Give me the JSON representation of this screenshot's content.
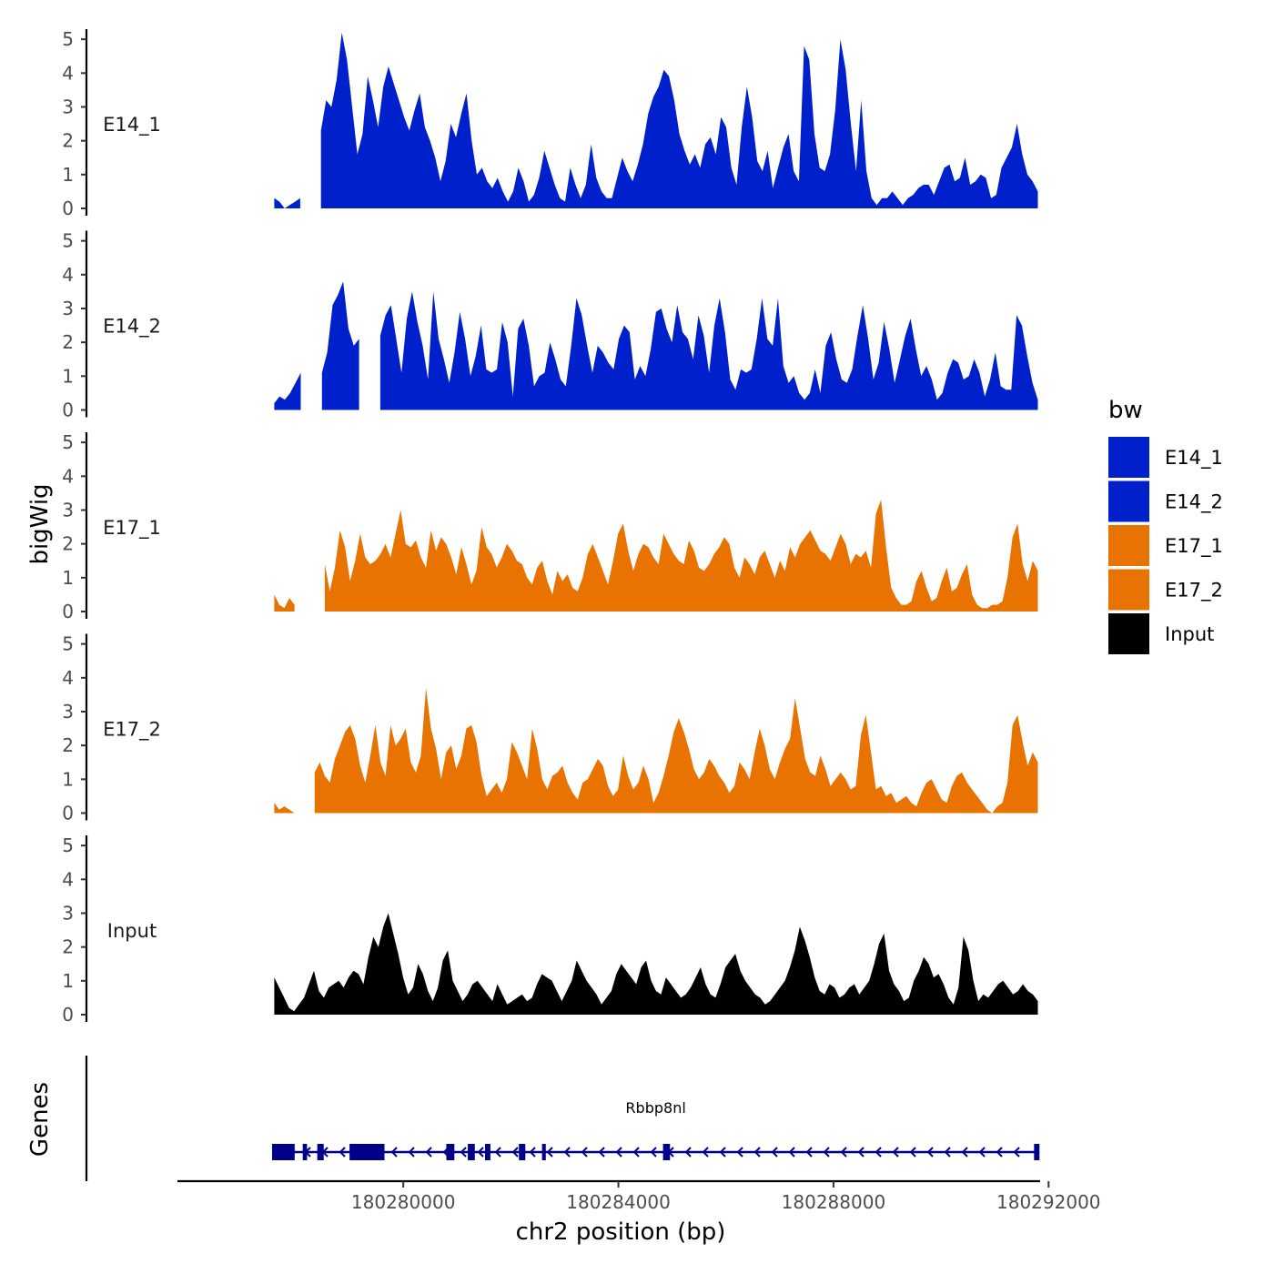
{
  "chart_data": {
    "type": "area",
    "x_title": "chr2 position (bp)",
    "y_title": "bigWig",
    "genes_title": "Genes",
    "legend_title": "bw",
    "xlim": [
      180275800,
      180292300
    ],
    "region": [
      180277600,
      180291800
    ],
    "x_ticks": [
      {
        "value": 180280000,
        "label": "180280000"
      },
      {
        "value": 180284000,
        "label": "180284000"
      },
      {
        "value": 180288000,
        "label": "180288000"
      },
      {
        "value": 180292000,
        "label": "180292000"
      }
    ],
    "ylim": [
      0,
      5.3
    ],
    "y_ticks": [
      {
        "value": 0,
        "label": "0"
      },
      {
        "value": 1,
        "label": "1"
      },
      {
        "value": 2,
        "label": "2"
      },
      {
        "value": 3,
        "label": "3"
      },
      {
        "value": 4,
        "label": "4"
      },
      {
        "value": 5,
        "label": "5"
      }
    ],
    "series": [
      {
        "name": "E14_1",
        "color": "#0020CC",
        "gaps": [
          [
            6,
            8
          ],
          [
            160,
            162
          ],
          [
            262,
            264
          ]
        ],
        "values": [
          0.3,
          0.2,
          0.0,
          0.1,
          0.2,
          0.3,
          0.7,
          1.2,
          1.6,
          2.3,
          3.2,
          3.0,
          3.8,
          5.2,
          4.4,
          3.0,
          1.6,
          2.2,
          3.9,
          3.2,
          2.4,
          3.6,
          4.2,
          3.7,
          3.2,
          2.7,
          2.3,
          2.9,
          3.4,
          2.4,
          2.0,
          1.5,
          0.8,
          1.4,
          2.5,
          2.1,
          2.8,
          3.4,
          2.0,
          1.0,
          1.2,
          0.8,
          0.6,
          0.9,
          0.5,
          0.2,
          0.5,
          1.2,
          0.8,
          0.2,
          0.4,
          0.9,
          1.7,
          1.2,
          0.7,
          0.3,
          0.2,
          1.2,
          0.7,
          0.3,
          0.7,
          1.9,
          0.9,
          0.5,
          0.3,
          0.3,
          0.9,
          1.5,
          1.1,
          0.8,
          1.3,
          1.9,
          2.8,
          3.3,
          3.6,
          4.1,
          3.9,
          3.2,
          2.2,
          1.7,
          1.3,
          1.6,
          1.2,
          1.9,
          2.1,
          1.6,
          2.7,
          2.4,
          1.2,
          0.7,
          2.4,
          3.6,
          2.7,
          1.4,
          1.1,
          1.7,
          0.6,
          1.2,
          1.8,
          2.2,
          1.1,
          0.8,
          4.8,
          4.4,
          2.2,
          1.2,
          1.1,
          1.6,
          2.9,
          5.0,
          4.1,
          2.5,
          1.1,
          3.2,
          1.1,
          0.3,
          0.1,
          0.3,
          0.3,
          0.5,
          0.3,
          0.1,
          0.3,
          0.4,
          0.6,
          0.7,
          0.7,
          0.4,
          0.8,
          1.2,
          1.3,
          0.8,
          0.9,
          1.5,
          0.7,
          0.8,
          1.0,
          0.9,
          0.3,
          0.4,
          1.2,
          1.5,
          1.8,
          2.5,
          1.6,
          1.0,
          0.8,
          0.5
        ]
      },
      {
        "name": "E14_2",
        "color": "#0020CC",
        "gaps": [
          [
            6,
            8
          ],
          [
            17,
            19
          ],
          [
            196,
            200
          ]
        ],
        "values": [
          0.2,
          0.4,
          0.3,
          0.5,
          0.8,
          1.1,
          1.3,
          1.2,
          1.0,
          1.1,
          1.7,
          3.1,
          3.4,
          3.8,
          2.4,
          1.9,
          2.1,
          1.6,
          1.0,
          1.4,
          2.2,
          2.8,
          3.1,
          2.1,
          1.1,
          2.7,
          3.5,
          2.6,
          1.9,
          0.9,
          3.5,
          2.1,
          1.5,
          0.8,
          1.7,
          2.9,
          2.1,
          1.0,
          1.6,
          2.5,
          1.2,
          1.1,
          1.2,
          2.6,
          2.0,
          0.4,
          2.4,
          2.7,
          1.9,
          0.7,
          1.0,
          1.1,
          2.0,
          1.5,
          0.9,
          0.7,
          1.9,
          3.3,
          2.8,
          1.9,
          1.1,
          1.9,
          1.7,
          1.4,
          1.2,
          2.1,
          2.5,
          2.3,
          0.9,
          1.3,
          1.0,
          1.8,
          2.9,
          3.0,
          2.4,
          2.0,
          3.1,
          2.3,
          2.1,
          1.5,
          2.8,
          2.2,
          1.1,
          2.5,
          3.3,
          2.3,
          0.9,
          0.6,
          1.2,
          1.1,
          1.2,
          2.1,
          3.3,
          2.1,
          1.9,
          3.3,
          1.3,
          0.8,
          1.0,
          0.5,
          0.3,
          0.5,
          1.2,
          0.5,
          1.9,
          2.3,
          1.5,
          0.9,
          0.8,
          1.2,
          2.2,
          3.1,
          2.1,
          0.9,
          1.4,
          2.6,
          1.8,
          0.8,
          1.5,
          2.2,
          2.7,
          1.8,
          1.0,
          1.3,
          0.9,
          0.3,
          0.5,
          1.1,
          1.5,
          1.4,
          0.9,
          1.0,
          1.5,
          1.1,
          0.4,
          0.9,
          1.7,
          0.7,
          0.6,
          0.6,
          2.8,
          2.5,
          1.6,
          0.8,
          0.3
        ]
      },
      {
        "name": "E17_1",
        "color": "#E87300",
        "gaps": [
          [
            5,
            9
          ]
        ],
        "values": [
          0.5,
          0.2,
          0.1,
          0.4,
          0.2,
          0.1,
          0.3,
          0.9,
          1.1,
          1.8,
          1.4,
          0.6,
          1.3,
          2.4,
          1.9,
          0.9,
          1.5,
          2.3,
          1.6,
          1.4,
          1.5,
          1.7,
          2.0,
          1.6,
          2.3,
          3.0,
          2.0,
          1.9,
          2.1,
          1.6,
          1.3,
          2.4,
          1.8,
          2.2,
          2.0,
          1.6,
          1.1,
          1.9,
          1.4,
          0.8,
          1.2,
          2.5,
          1.9,
          1.7,
          1.3,
          1.6,
          2.0,
          1.8,
          1.5,
          1.4,
          1.0,
          0.8,
          1.3,
          1.5,
          0.9,
          0.5,
          1.2,
          0.9,
          1.1,
          0.7,
          0.6,
          1.0,
          1.7,
          2.0,
          1.6,
          1.2,
          0.8,
          1.5,
          2.3,
          2.6,
          1.8,
          1.2,
          1.7,
          2.0,
          1.9,
          1.6,
          1.4,
          2.3,
          2.0,
          1.7,
          1.5,
          1.4,
          2.1,
          1.8,
          1.3,
          1.2,
          1.4,
          1.7,
          1.9,
          2.2,
          2.0,
          1.3,
          1.0,
          1.6,
          1.4,
          1.1,
          1.6,
          1.8,
          1.4,
          1.0,
          1.5,
          1.2,
          1.9,
          1.6,
          2.0,
          2.2,
          2.4,
          2.1,
          1.8,
          1.7,
          1.5,
          1.9,
          2.3,
          2.0,
          1.4,
          1.7,
          1.6,
          1.8,
          1.3,
          2.9,
          3.3,
          1.9,
          0.7,
          0.4,
          0.2,
          0.2,
          0.3,
          0.9,
          1.2,
          0.7,
          0.3,
          0.4,
          0.9,
          1.3,
          0.6,
          0.7,
          1.1,
          1.4,
          0.5,
          0.2,
          0.1,
          0.1,
          0.2,
          0.2,
          0.3,
          1.0,
          2.2,
          2.6,
          1.4,
          0.9,
          1.5,
          1.2
        ]
      },
      {
        "name": "E17_2",
        "color": "#E87300",
        "gaps": [
          [
            5,
            7
          ],
          [
            198,
            202
          ]
        ],
        "values": [
          0.3,
          0.1,
          0.2,
          0.1,
          0.0,
          0.1,
          0.3,
          0.6,
          1.2,
          1.5,
          1.1,
          0.9,
          1.6,
          2.0,
          2.4,
          2.6,
          2.2,
          1.4,
          0.9,
          1.7,
          2.6,
          1.5,
          1.1,
          2.6,
          2.0,
          2.2,
          2.5,
          1.5,
          1.2,
          1.7,
          3.7,
          2.5,
          1.9,
          1.0,
          1.8,
          2.0,
          1.3,
          1.7,
          2.5,
          2.6,
          2.1,
          1.1,
          0.5,
          0.7,
          0.9,
          0.6,
          1.0,
          2.1,
          1.8,
          1.4,
          1.0,
          2.5,
          1.9,
          1.0,
          0.7,
          1.1,
          1.2,
          1.4,
          0.9,
          0.6,
          0.4,
          0.9,
          1.0,
          1.3,
          1.6,
          1.4,
          0.8,
          0.5,
          0.7,
          1.7,
          1.1,
          0.7,
          0.9,
          1.4,
          1.0,
          0.3,
          0.6,
          1.1,
          1.7,
          2.4,
          2.8,
          2.4,
          1.9,
          1.3,
          1.0,
          1.2,
          1.6,
          1.4,
          1.1,
          0.9,
          0.6,
          0.8,
          1.5,
          1.3,
          1.0,
          1.8,
          2.5,
          2.0,
          1.3,
          1.0,
          1.5,
          1.9,
          2.2,
          3.4,
          2.5,
          1.6,
          1.2,
          1.1,
          1.7,
          1.3,
          0.8,
          1.0,
          1.2,
          1.0,
          0.7,
          0.8,
          2.3,
          2.9,
          1.8,
          0.7,
          0.8,
          0.5,
          0.6,
          0.3,
          0.4,
          0.5,
          0.3,
          0.2,
          0.6,
          0.9,
          1.0,
          0.7,
          0.4,
          0.3,
          0.8,
          1.1,
          1.2,
          0.9,
          0.7,
          0.5,
          0.3,
          0.1,
          0.0,
          0.2,
          0.3,
          0.9,
          2.6,
          2.9,
          2.1,
          1.4,
          1.8,
          1.5
        ]
      },
      {
        "name": "Input",
        "color": "#000000",
        "gaps": [],
        "values": [
          1.1,
          0.8,
          0.5,
          0.2,
          0.1,
          0.3,
          0.5,
          0.9,
          1.3,
          0.7,
          0.5,
          0.8,
          0.9,
          1.0,
          0.8,
          1.1,
          1.3,
          1.2,
          0.9,
          1.7,
          2.3,
          2.0,
          2.6,
          3.0,
          2.4,
          1.8,
          1.1,
          0.6,
          0.8,
          1.5,
          1.2,
          0.7,
          0.4,
          0.8,
          1.6,
          1.9,
          1.0,
          0.7,
          0.4,
          0.6,
          0.9,
          1.0,
          0.8,
          0.6,
          0.4,
          0.9,
          0.6,
          0.3,
          0.4,
          0.5,
          0.6,
          0.4,
          0.5,
          0.9,
          1.2,
          1.1,
          1.0,
          0.7,
          0.4,
          0.7,
          1.0,
          1.6,
          1.3,
          1.0,
          0.8,
          0.6,
          0.3,
          0.5,
          0.7,
          1.2,
          1.5,
          1.3,
          1.1,
          0.9,
          1.4,
          1.6,
          1.0,
          0.7,
          0.6,
          1.1,
          0.9,
          0.7,
          0.5,
          0.6,
          0.8,
          1.1,
          1.4,
          0.9,
          0.6,
          0.5,
          0.9,
          1.4,
          1.6,
          1.8,
          1.3,
          1.0,
          0.8,
          0.6,
          0.5,
          0.3,
          0.4,
          0.6,
          0.8,
          1.0,
          1.4,
          1.9,
          2.6,
          2.2,
          1.7,
          1.1,
          0.7,
          0.6,
          0.9,
          0.8,
          0.5,
          0.6,
          0.8,
          0.9,
          0.6,
          0.8,
          1.0,
          1.5,
          2.1,
          2.4,
          1.3,
          0.9,
          0.7,
          0.4,
          0.5,
          1.0,
          1.3,
          1.7,
          1.5,
          1.1,
          1.2,
          0.9,
          0.5,
          0.3,
          0.8,
          2.3,
          1.9,
          1.0,
          0.4,
          0.6,
          0.5,
          0.7,
          0.9,
          1.0,
          0.8,
          0.6,
          0.7,
          0.9,
          0.7,
          0.6,
          0.4
        ]
      }
    ],
    "gene": {
      "name": "Rbbp8nl",
      "color": "#00008B",
      "start": 180277560,
      "end": 180291830,
      "strand": "-",
      "exons": [
        [
          180277560,
          180277980
        ],
        [
          180278130,
          180278210
        ],
        [
          180278400,
          180278520
        ],
        [
          180279000,
          180279650
        ],
        [
          180280800,
          180280950
        ],
        [
          180281200,
          180281330
        ],
        [
          180281520,
          180281620
        ],
        [
          180282150,
          180282270
        ],
        [
          180282580,
          180282650
        ],
        [
          180284830,
          180284960
        ],
        [
          180291730,
          180291830
        ]
      ]
    }
  }
}
